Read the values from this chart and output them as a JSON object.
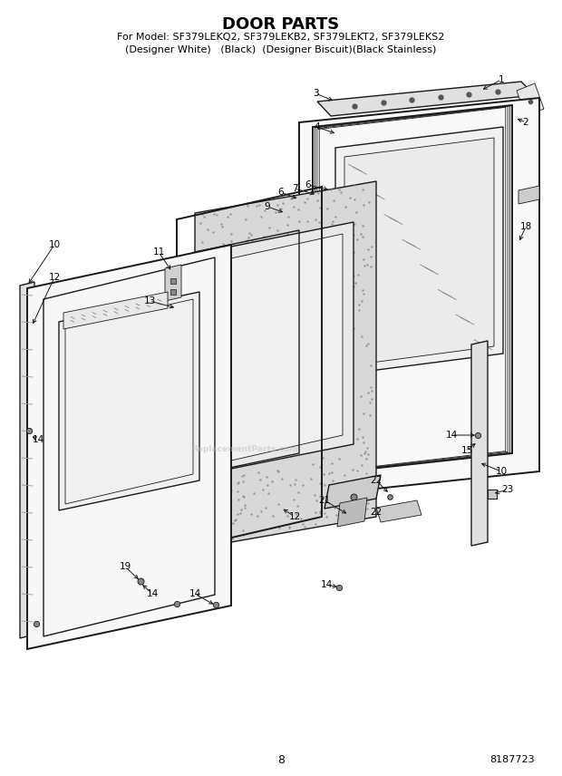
{
  "title": "DOOR PARTS",
  "subtitle_line1": "For Model: SF379LEKQ2, SF379LEKB2, SF379LEKT2, SF379LEKS2",
  "subtitle_line2": "(Designer White)   (Black)  (Designer Biscuit)(Black Stainless)",
  "page_number": "8",
  "part_number": "8187723",
  "bg_color": "#ffffff",
  "title_color": "#000000",
  "title_fontsize": 13,
  "subtitle_fontsize": 8.0,
  "line_color": "#1a1a1a",
  "lw_main": 1.0,
  "lw_thin": 0.6,
  "lw_thick": 1.4,
  "label_fontsize": 7.5
}
